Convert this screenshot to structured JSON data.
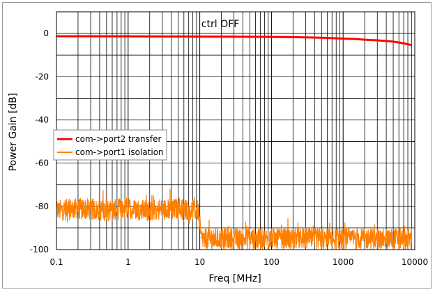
{
  "chart_data": {
    "type": "line",
    "title": "",
    "annotation": "ctrl OFF",
    "xlabel": "Freq [MHz]",
    "ylabel": "Power Gain [dB]",
    "xscale": "log",
    "xlim": [
      0.1,
      10000
    ],
    "ylim": [
      -100,
      10
    ],
    "x_tick_labels": [
      "0.1",
      "1",
      "10",
      "100",
      "1000",
      "10000"
    ],
    "y_tick_labels": [
      "0",
      "-20",
      "-40",
      "-60",
      "-80",
      "-100"
    ],
    "grid": true,
    "legend_position": "middle-left",
    "series": [
      {
        "name": "com->port2 transfer",
        "color": "#ff0000",
        "x": [
          0.1,
          0.3,
          1,
          3,
          10,
          30,
          100,
          200,
          300,
          500,
          700,
          1000,
          1500,
          2000,
          3000,
          4000,
          5000,
          6000,
          7000,
          8000,
          9000
        ],
        "y": [
          -1.3,
          -1.3,
          -1.35,
          -1.4,
          -1.45,
          -1.5,
          -1.6,
          -1.7,
          -1.8,
          -2.0,
          -2.2,
          -2.4,
          -2.6,
          -2.9,
          -3.2,
          -3.5,
          -3.8,
          -4.2,
          -4.6,
          -5.0,
          -5.4
        ]
      },
      {
        "name": "com->port1 isolation",
        "color": "#ff7f00",
        "x": [
          0.1,
          0.2,
          0.5,
          1,
          2,
          5,
          9.5,
          10.5,
          20,
          50,
          100,
          200,
          500,
          1000,
          2000,
          5000,
          9000
        ],
        "y": [
          -82,
          -81,
          -82,
          -81,
          -82,
          -81,
          -82,
          -95,
          -95,
          -95,
          -95,
          -95,
          -95,
          -95,
          -95,
          -95,
          -95
        ],
        "noise_band_db": 10
      }
    ]
  }
}
